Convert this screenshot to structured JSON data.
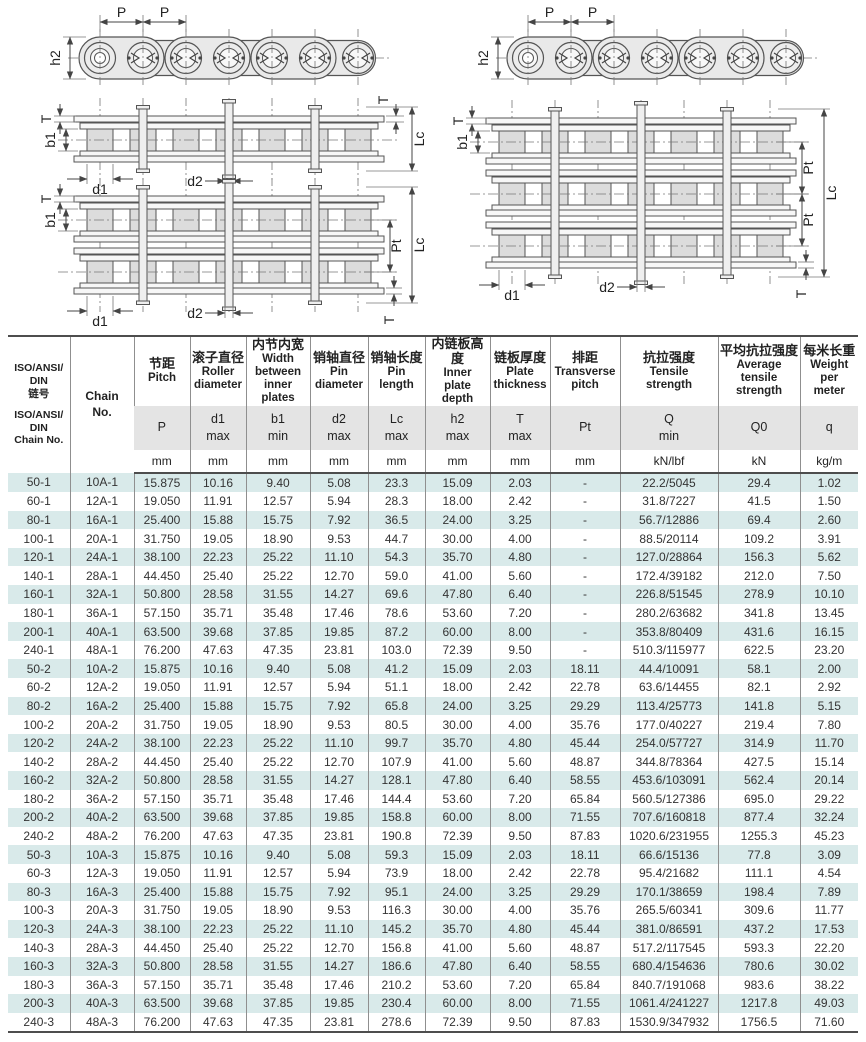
{
  "diagrams": {
    "labels": {
      "pitch": "P",
      "inner_plate_depth": "h2",
      "plate_thickness": "T",
      "inner_width": "b1",
      "roller_diameter": "d1",
      "pin_diameter": "d2",
      "pin_length": "Lc",
      "transverse_pitch": "Pt"
    }
  },
  "colors": {
    "row_stripe": "#d9eaea",
    "header_symbol_band": "#e4e4e4",
    "drawing_fill": "#e9e9e9",
    "drawing_stroke": "#555555"
  },
  "table": {
    "corner": {
      "zh": "ISO/ANSI/\nDIN\n链号",
      "en": "ISO/ANSI/\nDIN\nChain No."
    },
    "chain_no_header": "Chain\nNo.",
    "columns": [
      {
        "key": "pitch",
        "zh": "节距",
        "en": "Pitch",
        "sym": "P",
        "unit": "mm"
      },
      {
        "key": "roller-diameter",
        "zh": "滚子直径",
        "en": "Roller\ndiameter",
        "sym": "d1\nmax",
        "unit": "mm"
      },
      {
        "key": "inner-width",
        "zh": "内节内宽",
        "en": "Width\nbetween\ninner plates",
        "sym": "b1\nmin",
        "unit": "mm"
      },
      {
        "key": "pin-diameter",
        "zh": "销轴直径",
        "en": "Pin\ndiameter",
        "sym": "d2\nmax",
        "unit": "mm"
      },
      {
        "key": "pin-length",
        "zh": "销轴长度",
        "en": "Pin\nlength",
        "sym": "Lc\nmax",
        "unit": "mm"
      },
      {
        "key": "inner-plate-depth",
        "zh": "内链板高度",
        "en": "Inner\nplate\ndepth",
        "sym": "h2\nmax",
        "unit": "mm"
      },
      {
        "key": "plate-thickness",
        "zh": "链板厚度",
        "en": "Plate\nthickness",
        "sym": "T\nmax",
        "unit": "mm"
      },
      {
        "key": "transverse-pitch",
        "zh": "排距",
        "en": "Transverse\npitch",
        "sym": "Pt",
        "unit": "mm"
      },
      {
        "key": "tensile-strength",
        "zh": "抗拉强度",
        "en": "Tensile\nstrength",
        "sym": "Q\nmin",
        "unit": "kN/lbf"
      },
      {
        "key": "avg-tensile-strength",
        "zh": "平均抗拉强度",
        "en": "Average\ntensile\nstrength",
        "sym": "Q0",
        "unit": "kN"
      },
      {
        "key": "weight-per-meter",
        "zh": "每米长重",
        "en": "Weight\nper\nmeter",
        "sym": "q",
        "unit": "kg/m"
      }
    ],
    "rows": [
      [
        "50-1",
        "10A-1",
        "15.875",
        "10.16",
        "9.40",
        "5.08",
        "23.3",
        "15.09",
        "2.03",
        "-",
        "22.2/5045",
        "29.4",
        "1.02"
      ],
      [
        "60-1",
        "12A-1",
        "19.050",
        "11.91",
        "12.57",
        "5.94",
        "28.3",
        "18.00",
        "2.42",
        "-",
        "31.8/7227",
        "41.5",
        "1.50"
      ],
      [
        "80-1",
        "16A-1",
        "25.400",
        "15.88",
        "15.75",
        "7.92",
        "36.5",
        "24.00",
        "3.25",
        "-",
        "56.7/12886",
        "69.4",
        "2.60"
      ],
      [
        "100-1",
        "20A-1",
        "31.750",
        "19.05",
        "18.90",
        "9.53",
        "44.7",
        "30.00",
        "4.00",
        "-",
        "88.5/20114",
        "109.2",
        "3.91"
      ],
      [
        "120-1",
        "24A-1",
        "38.100",
        "22.23",
        "25.22",
        "11.10",
        "54.3",
        "35.70",
        "4.80",
        "-",
        "127.0/28864",
        "156.3",
        "5.62"
      ],
      [
        "140-1",
        "28A-1",
        "44.450",
        "25.40",
        "25.22",
        "12.70",
        "59.0",
        "41.00",
        "5.60",
        "-",
        "172.4/39182",
        "212.0",
        "7.50"
      ],
      [
        "160-1",
        "32A-1",
        "50.800",
        "28.58",
        "31.55",
        "14.27",
        "69.6",
        "47.80",
        "6.40",
        "-",
        "226.8/51545",
        "278.9",
        "10.10"
      ],
      [
        "180-1",
        "36A-1",
        "57.150",
        "35.71",
        "35.48",
        "17.46",
        "78.6",
        "53.60",
        "7.20",
        "-",
        "280.2/63682",
        "341.8",
        "13.45"
      ],
      [
        "200-1",
        "40A-1",
        "63.500",
        "39.68",
        "37.85",
        "19.85",
        "87.2",
        "60.00",
        "8.00",
        "-",
        "353.8/80409",
        "431.6",
        "16.15"
      ],
      [
        "240-1",
        "48A-1",
        "76.200",
        "47.63",
        "47.35",
        "23.81",
        "103.0",
        "72.39",
        "9.50",
        "-",
        "510.3/115977",
        "622.5",
        "23.20"
      ],
      [
        "50-2",
        "10A-2",
        "15.875",
        "10.16",
        "9.40",
        "5.08",
        "41.2",
        "15.09",
        "2.03",
        "18.11",
        "44.4/10091",
        "58.1",
        "2.00"
      ],
      [
        "60-2",
        "12A-2",
        "19.050",
        "11.91",
        "12.57",
        "5.94",
        "51.1",
        "18.00",
        "2.42",
        "22.78",
        "63.6/14455",
        "82.1",
        "2.92"
      ],
      [
        "80-2",
        "16A-2",
        "25.400",
        "15.88",
        "15.75",
        "7.92",
        "65.8",
        "24.00",
        "3.25",
        "29.29",
        "113.4/25773",
        "141.8",
        "5.15"
      ],
      [
        "100-2",
        "20A-2",
        "31.750",
        "19.05",
        "18.90",
        "9.53",
        "80.5",
        "30.00",
        "4.00",
        "35.76",
        "177.0/40227",
        "219.4",
        "7.80"
      ],
      [
        "120-2",
        "24A-2",
        "38.100",
        "22.23",
        "25.22",
        "11.10",
        "99.7",
        "35.70",
        "4.80",
        "45.44",
        "254.0/57727",
        "314.9",
        "11.70"
      ],
      [
        "140-2",
        "28A-2",
        "44.450",
        "25.40",
        "25.22",
        "12.70",
        "107.9",
        "41.00",
        "5.60",
        "48.87",
        "344.8/78364",
        "427.5",
        "15.14"
      ],
      [
        "160-2",
        "32A-2",
        "50.800",
        "28.58",
        "31.55",
        "14.27",
        "128.1",
        "47.80",
        "6.40",
        "58.55",
        "453.6/103091",
        "562.4",
        "20.14"
      ],
      [
        "180-2",
        "36A-2",
        "57.150",
        "35.71",
        "35.48",
        "17.46",
        "144.4",
        "53.60",
        "7.20",
        "65.84",
        "560.5/127386",
        "695.0",
        "29.22"
      ],
      [
        "200-2",
        "40A-2",
        "63.500",
        "39.68",
        "37.85",
        "19.85",
        "158.8",
        "60.00",
        "8.00",
        "71.55",
        "707.6/160818",
        "877.4",
        "32.24"
      ],
      [
        "240-2",
        "48A-2",
        "76.200",
        "47.63",
        "47.35",
        "23.81",
        "190.8",
        "72.39",
        "9.50",
        "87.83",
        "1020.6/231955",
        "1255.3",
        "45.23"
      ],
      [
        "50-3",
        "10A-3",
        "15.875",
        "10.16",
        "9.40",
        "5.08",
        "59.3",
        "15.09",
        "2.03",
        "18.11",
        "66.6/15136",
        "77.8",
        "3.09"
      ],
      [
        "60-3",
        "12A-3",
        "19.050",
        "11.91",
        "12.57",
        "5.94",
        "73.9",
        "18.00",
        "2.42",
        "22.78",
        "95.4/21682",
        "111.1",
        "4.54"
      ],
      [
        "80-3",
        "16A-3",
        "25.400",
        "15.88",
        "15.75",
        "7.92",
        "95.1",
        "24.00",
        "3.25",
        "29.29",
        "170.1/38659",
        "198.4",
        "7.89"
      ],
      [
        "100-3",
        "20A-3",
        "31.750",
        "19.05",
        "18.90",
        "9.53",
        "116.3",
        "30.00",
        "4.00",
        "35.76",
        "265.5/60341",
        "309.6",
        "11.77"
      ],
      [
        "120-3",
        "24A-3",
        "38.100",
        "22.23",
        "25.22",
        "11.10",
        "145.2",
        "35.70",
        "4.80",
        "45.44",
        "381.0/86591",
        "437.2",
        "17.53"
      ],
      [
        "140-3",
        "28A-3",
        "44.450",
        "25.40",
        "25.22",
        "12.70",
        "156.8",
        "41.00",
        "5.60",
        "48.87",
        "517.2/117545",
        "593.3",
        "22.20"
      ],
      [
        "160-3",
        "32A-3",
        "50.800",
        "28.58",
        "31.55",
        "14.27",
        "186.6",
        "47.80",
        "6.40",
        "58.55",
        "680.4/154636",
        "780.6",
        "30.02"
      ],
      [
        "180-3",
        "36A-3",
        "57.150",
        "35.71",
        "35.48",
        "17.46",
        "210.2",
        "53.60",
        "7.20",
        "65.84",
        "840.7/191068",
        "983.6",
        "38.22"
      ],
      [
        "200-3",
        "40A-3",
        "63.500",
        "39.68",
        "37.85",
        "19.85",
        "230.4",
        "60.00",
        "8.00",
        "71.55",
        "1061.4/241227",
        "1217.8",
        "49.03"
      ],
      [
        "240-3",
        "48A-3",
        "76.200",
        "47.63",
        "47.35",
        "23.81",
        "278.6",
        "72.39",
        "9.50",
        "87.83",
        "1530.9/347932",
        "1756.5",
        "71.60"
      ]
    ]
  }
}
